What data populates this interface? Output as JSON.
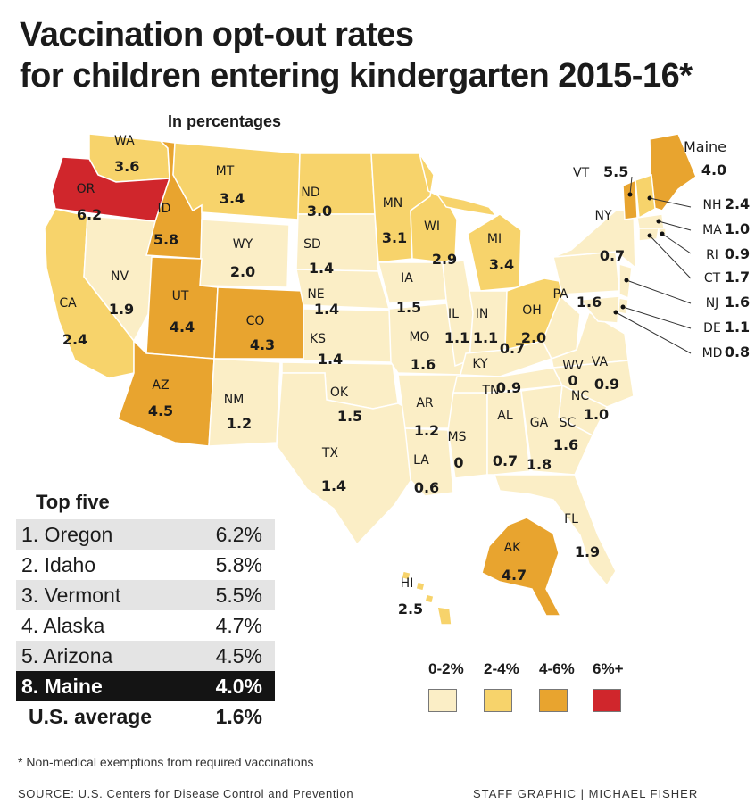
{
  "title_line1": "Vaccination opt-out rates",
  "title_line2": "for children entering kindergarten 2015-16*",
  "subtitle": "In percentages",
  "colors": {
    "c0_2": "#fbeec6",
    "c2_4": "#f7d36b",
    "c4_6": "#e8a42f",
    "c6_plus": "#d0262c",
    "stroke": "#ffffff"
  },
  "states": {
    "WA": {
      "abbr": "WA",
      "value": "3.6",
      "bin": "c2_4"
    },
    "OR": {
      "abbr": "OR",
      "value": "6.2",
      "bin": "c6_plus"
    },
    "CA": {
      "abbr": "CA",
      "value": "2.4",
      "bin": "c2_4"
    },
    "NV": {
      "abbr": "NV",
      "value": "1.9",
      "bin": "c0_2"
    },
    "ID": {
      "abbr": "ID",
      "value": "5.8",
      "bin": "c4_6"
    },
    "MT": {
      "abbr": "MT",
      "value": "3.4",
      "bin": "c2_4"
    },
    "WY": {
      "abbr": "WY",
      "value": "2.0",
      "bin": "c0_2"
    },
    "UT": {
      "abbr": "UT",
      "value": "4.4",
      "bin": "c4_6"
    },
    "AZ": {
      "abbr": "AZ",
      "value": "4.5",
      "bin": "c4_6"
    },
    "CO": {
      "abbr": "CO",
      "value": "4.3",
      "bin": "c4_6"
    },
    "NM": {
      "abbr": "NM",
      "value": "1.2",
      "bin": "c0_2"
    },
    "ND": {
      "abbr": "ND",
      "value": "3.0",
      "bin": "c2_4"
    },
    "SD": {
      "abbr": "SD",
      "value": "1.4",
      "bin": "c0_2"
    },
    "NE": {
      "abbr": "NE",
      "value": "1.4",
      "bin": "c0_2"
    },
    "KS": {
      "abbr": "KS",
      "value": "1.4",
      "bin": "c0_2"
    },
    "OK": {
      "abbr": "OK",
      "value": "1.5",
      "bin": "c0_2"
    },
    "TX": {
      "abbr": "TX",
      "value": "1.4",
      "bin": "c0_2"
    },
    "MN": {
      "abbr": "MN",
      "value": "3.1",
      "bin": "c2_4"
    },
    "IA": {
      "abbr": "IA",
      "value": "1.5",
      "bin": "c0_2"
    },
    "MO": {
      "abbr": "MO",
      "value": "1.6",
      "bin": "c0_2"
    },
    "AR": {
      "abbr": "AR",
      "value": "1.2",
      "bin": "c0_2"
    },
    "LA": {
      "abbr": "LA",
      "value": "0.6",
      "bin": "c0_2"
    },
    "WI": {
      "abbr": "WI",
      "value": "2.9",
      "bin": "c2_4"
    },
    "IL": {
      "abbr": "IL",
      "value": "1.1",
      "bin": "c0_2"
    },
    "MS": {
      "abbr": "MS",
      "value": "0",
      "bin": "c0_2"
    },
    "MI": {
      "abbr": "MI",
      "value": "3.4",
      "bin": "c2_4"
    },
    "IN": {
      "abbr": "IN",
      "value": "1.1",
      "bin": "c0_2"
    },
    "KY": {
      "abbr": "KY",
      "value": "0.7",
      "bin": "c0_2"
    },
    "TN": {
      "abbr": "TN",
      "value": "0.9",
      "bin": "c0_2"
    },
    "AL": {
      "abbr": "AL",
      "value": "0.7",
      "bin": "c0_2"
    },
    "OH": {
      "abbr": "OH",
      "value": "2.0",
      "bin": "c2_4"
    },
    "WV": {
      "abbr": "WV",
      "value": "0",
      "bin": "c0_2"
    },
    "VA": {
      "abbr": "VA",
      "value": "0.9",
      "bin": "c0_2"
    },
    "NC": {
      "abbr": "NC",
      "value": "1.0",
      "bin": "c0_2"
    },
    "SC": {
      "abbr": "SC",
      "value": "1.6",
      "bin": "c0_2"
    },
    "GA": {
      "abbr": "GA",
      "value": "1.8",
      "bin": "c0_2"
    },
    "FL": {
      "abbr": "FL",
      "value": "1.9",
      "bin": "c0_2"
    },
    "PA": {
      "abbr": "PA",
      "value": "1.6",
      "bin": "c0_2"
    },
    "NY": {
      "abbr": "NY",
      "value": "0.7",
      "bin": "c0_2"
    },
    "VT": {
      "abbr": "VT",
      "value": "5.5",
      "bin": "c4_6"
    },
    "ME": {
      "abbr": "Maine",
      "value": "4.0",
      "bin": "c4_6"
    },
    "NH": {
      "abbr": "NH",
      "value": "2.4",
      "bin": "c2_4"
    },
    "MA": {
      "abbr": "MA",
      "value": "1.0",
      "bin": "c0_2"
    },
    "RI": {
      "abbr": "RI",
      "value": "0.9",
      "bin": "c0_2"
    },
    "CT": {
      "abbr": "CT",
      "value": "1.7",
      "bin": "c0_2"
    },
    "NJ": {
      "abbr": "NJ",
      "value": "1.6",
      "bin": "c0_2"
    },
    "DE": {
      "abbr": "DE",
      "value": "1.1",
      "bin": "c0_2"
    },
    "MD": {
      "abbr": "MD",
      "value": "0.8",
      "bin": "c0_2"
    },
    "AK": {
      "abbr": "AK",
      "value": "4.7",
      "bin": "c4_6"
    },
    "HI": {
      "abbr": "HI",
      "value": "2.5",
      "bin": "c2_4"
    }
  },
  "top_five": {
    "title": "Top five",
    "rows": [
      {
        "label": "1. Oregon",
        "value": "6.2%"
      },
      {
        "label": "2. Idaho",
        "value": "5.8%"
      },
      {
        "label": "3. Vermont",
        "value": "5.5%"
      },
      {
        "label": "4. Alaska",
        "value": "4.7%"
      },
      {
        "label": "5. Arizona",
        "value": "4.5%"
      }
    ],
    "maine": {
      "label": "8. Maine",
      "value": "4.0%"
    },
    "average": {
      "label": "U.S. average",
      "value": "1.6%"
    }
  },
  "legend": [
    {
      "label": "0-2%",
      "color_key": "c0_2"
    },
    {
      "label": "2-4%",
      "color_key": "c2_4"
    },
    {
      "label": "4-6%",
      "color_key": "c4_6"
    },
    {
      "label": "6%+",
      "color_key": "c6_plus"
    }
  ],
  "footnote": "* Non-medical exemptions from required vaccinations",
  "source": "SOURCE: U.S. Centers for Disease Control and Prevention",
  "credit": "STAFF GRAPHIC | MICHAEL FISHER"
}
